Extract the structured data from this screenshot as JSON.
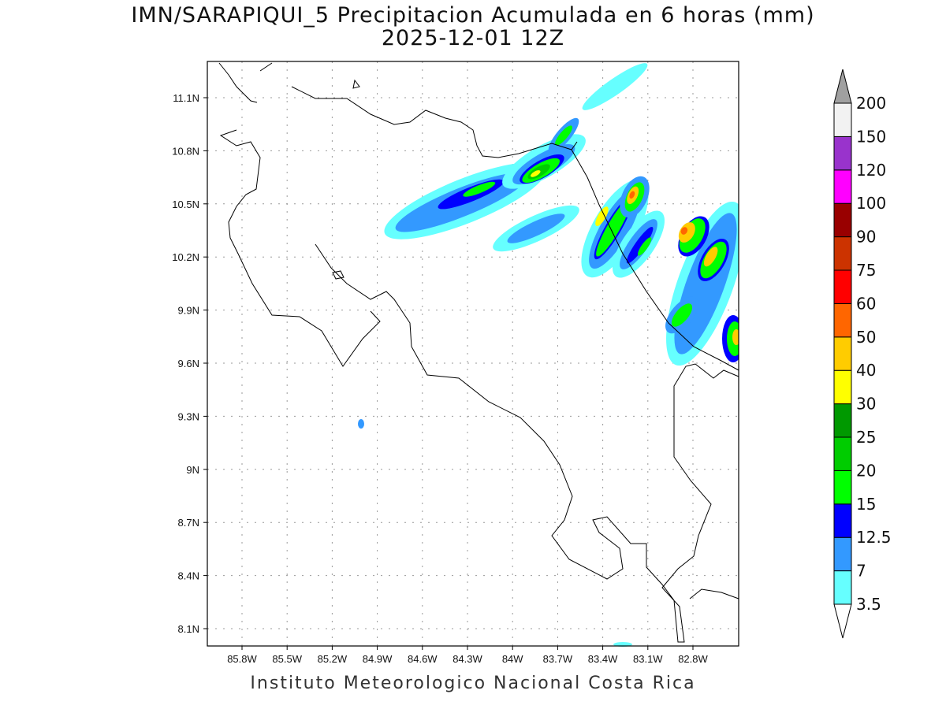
{
  "title": {
    "line1": "IMN/SARAPIQUI_5 Precipitacion Acumulada en 6 horas (mm)",
    "line2": "2025-12-01 12Z"
  },
  "footer": "Instituto Meteorologico Nacional Costa Rica",
  "axes": {
    "lon_ticks": [
      {
        "value": 85.8,
        "label": "85.8W"
      },
      {
        "value": 85.5,
        "label": "85.5W"
      },
      {
        "value": 85.2,
        "label": "85.2W"
      },
      {
        "value": 84.9,
        "label": "84.9W"
      },
      {
        "value": 84.6,
        "label": "84.6W"
      },
      {
        "value": 84.3,
        "label": "84.3W"
      },
      {
        "value": 84.0,
        "label": "84W"
      },
      {
        "value": 83.7,
        "label": "83.7W"
      },
      {
        "value": 83.4,
        "label": "83.4W"
      },
      {
        "value": 83.1,
        "label": "83.1W"
      },
      {
        "value": 82.8,
        "label": "82.8W"
      }
    ],
    "lat_ticks": [
      {
        "value": 11.1,
        "label": "11.1N"
      },
      {
        "value": 10.8,
        "label": "10.8N"
      },
      {
        "value": 10.5,
        "label": "10.5N"
      },
      {
        "value": 10.2,
        "label": "10.2N"
      },
      {
        "value": 9.9,
        "label": "9.9N"
      },
      {
        "value": 9.6,
        "label": "9.6N"
      },
      {
        "value": 9.3,
        "label": "9.3N"
      },
      {
        "value": 9.0,
        "label": "9N"
      },
      {
        "value": 8.7,
        "label": "8.7N"
      },
      {
        "value": 8.4,
        "label": "8.4N"
      },
      {
        "value": 8.1,
        "label": "8.1N"
      }
    ]
  },
  "colorbar": {
    "units": "mm",
    "below_color": "#ffffff",
    "above_color": "#a0a0a0",
    "bins": [
      {
        "label": "3.5",
        "color": "#66ffff"
      },
      {
        "label": "7",
        "color": "#3399ff"
      },
      {
        "label": "12.5",
        "color": "#0000ff"
      },
      {
        "label": "15",
        "color": "#00ff00"
      },
      {
        "label": "20",
        "color": "#00cc00"
      },
      {
        "label": "25",
        "color": "#009900"
      },
      {
        "label": "30",
        "color": "#ffff00"
      },
      {
        "label": "40",
        "color": "#ffcc00"
      },
      {
        "label": "50",
        "color": "#ff6600"
      },
      {
        "label": "60",
        "color": "#ff0000"
      },
      {
        "label": "75",
        "color": "#cc3300"
      },
      {
        "label": "90",
        "color": "#990000"
      },
      {
        "label": "100",
        "color": "#ff00ff"
      },
      {
        "label": "120",
        "color": "#9933cc"
      },
      {
        "label": "150",
        "color": "#f2f2f2"
      }
    ],
    "top_label": "200"
  }
}
